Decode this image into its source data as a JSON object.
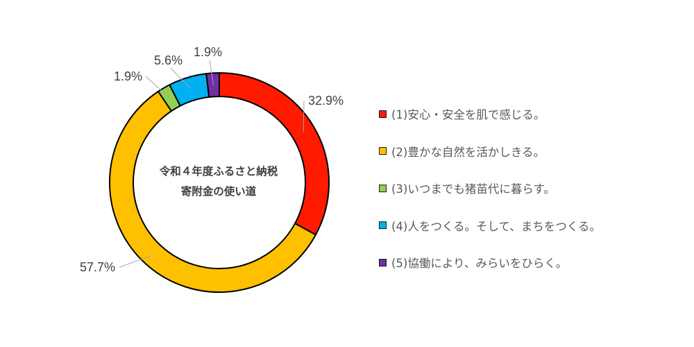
{
  "chart_data": {
    "type": "pie",
    "style": "donut",
    "center_title": [
      "令和４年度ふるさと納税",
      "寄附金の使い道"
    ],
    "slices": [
      {
        "label": "(1)安心・安全を肌で感じる。",
        "value": 32.9,
        "value_label": "32.9%",
        "color": "#FF1A00"
      },
      {
        "label": "(2)豊かな自然を活かしきる。",
        "value": 57.7,
        "value_label": "57.7%",
        "color": "#FFC000"
      },
      {
        "label": "(3)いつまでも猪苗代に暮らす。",
        "value": 1.9,
        "value_label": "1.9%",
        "color": "#92D050"
      },
      {
        "label": "(4)人をつくる。そして、まちをつくる。",
        "value": 5.6,
        "value_label": "5.6%",
        "color": "#00B0F0"
      },
      {
        "label": "(5)協働により、みらいをひらく。",
        "value": 1.9,
        "value_label": "1.9%",
        "color": "#7030A0"
      }
    ],
    "legend_position": "right"
  }
}
